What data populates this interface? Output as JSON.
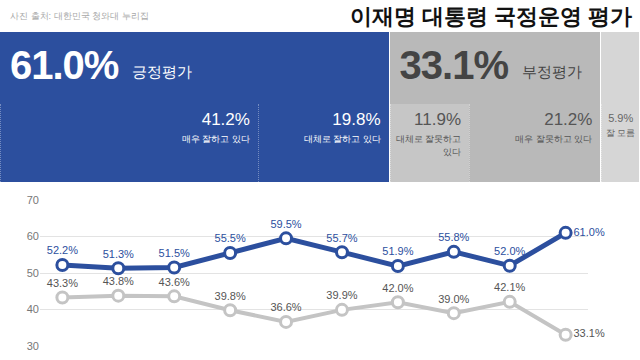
{
  "header": {
    "title": "이재명 대통령 국정운영 평가",
    "source": "사진 출처: 대한민국 청와대 누리집"
  },
  "summary": [
    {
      "label": "긍정평가",
      "value": 61.0,
      "value_label": "61.0%",
      "parts": [
        {
          "label": "매우 잘하고 있다",
          "value": 41.2,
          "value_label": "41.2%"
        },
        {
          "label": "대체로 잘하고 있다",
          "value": 19.8,
          "value_label": "19.8%"
        }
      ]
    },
    {
      "label": "부정평가",
      "value": 33.1,
      "value_label": "33.1%",
      "parts": [
        {
          "label": "대체로 잘못하고 있다",
          "value": 11.9,
          "value_label": "11.9%"
        },
        {
          "label": "매우 잘못하고 있다",
          "value": 21.2,
          "value_label": "21.2%"
        }
      ]
    },
    {
      "label": "잘 모름",
      "value": 5.9,
      "value_label": "5.9%"
    }
  ],
  "chart_data": {
    "type": "line",
    "categories": [
      null,
      null,
      null,
      null,
      null,
      null,
      null,
      null,
      null,
      null
    ],
    "series": [
      {
        "color": "#2c4f9e",
        "marker": "circle",
        "values": [
          52.2,
          51.3,
          51.5,
          55.5,
          59.5,
          55.7,
          51.9,
          55.8,
          52.0,
          61.0
        ],
        "value_labels": [
          "52.2%",
          "51.3%",
          "51.5%",
          "55.5%",
          "59.5%",
          "55.7%",
          "51.9%",
          "55.8%",
          "52.0%",
          "61.0%"
        ]
      },
      {
        "color": "#c4c4c4",
        "marker": "circle",
        "values": [
          43.3,
          43.8,
          43.6,
          39.8,
          36.6,
          39.9,
          42.0,
          39.0,
          42.1,
          33.1
        ],
        "value_labels": [
          "43.3%",
          "43.8%",
          "43.6%",
          "39.8%",
          "36.6%",
          "39.9%",
          "42.0%",
          "39.0%",
          "42.1%",
          "33.1%"
        ]
      }
    ],
    "ylim": [
      30,
      70
    ],
    "yticks": [
      30,
      40,
      50,
      60,
      70
    ],
    "grid": true,
    "data_labels": true,
    "tick_labels": "y"
  }
}
